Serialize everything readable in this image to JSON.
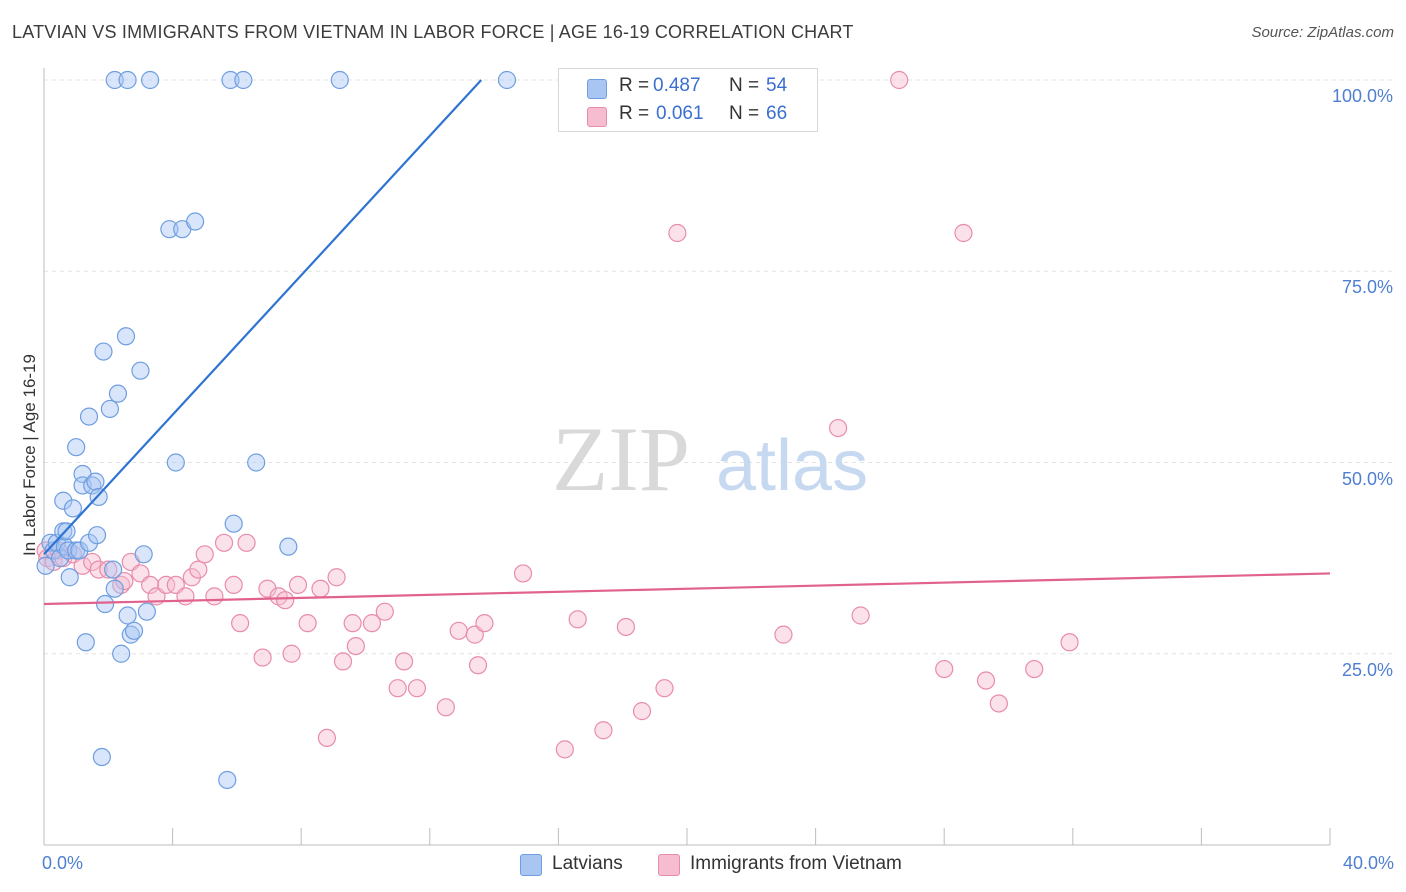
{
  "title": "LATVIAN VS IMMIGRANTS FROM VIETNAM IN LABOR FORCE | AGE 16-19 CORRELATION CHART",
  "source": "Source: ZipAtlas.com",
  "watermark": {
    "zip": "ZIP",
    "atlas": "atlas"
  },
  "colors": {
    "latvians_fill": "#a9c6f3",
    "latvians_stroke": "#6f9ee0",
    "latvians_line": "#2f74d0",
    "vietnam_fill": "#f6bcd0",
    "vietnam_stroke": "#e88cab",
    "vietnam_line": "#e0628d",
    "tick_text": "#4f7fd1",
    "grid": "#e3e3e3"
  },
  "stats": [
    {
      "r_label": "R =",
      "r_value": "0.487",
      "n_label": "N =",
      "n_value": "54"
    },
    {
      "r_label": "R =",
      "r_value": "0.061",
      "n_label": "N =",
      "n_value": "66"
    }
  ],
  "legend": [
    "Latvians",
    "Immigrants from Vietnam"
  ],
  "chart_data": {
    "type": "scatter",
    "title": "LATVIAN VS IMMIGRANTS FROM VIETNAM IN LABOR FORCE | AGE 16-19 CORRELATION CHART",
    "xlabel": "",
    "ylabel": "In Labor Force | Age 16-19",
    "xlim": [
      0,
      40
    ],
    "ylim": [
      0,
      100
    ],
    "x_tick_labels": [
      "0.0%",
      "40.0%"
    ],
    "y_tick_labels": [
      "25.0%",
      "50.0%",
      "75.0%",
      "100.0%"
    ],
    "y_ticks": [
      25,
      50,
      75,
      100
    ],
    "x_minor_ticks": [
      0,
      4,
      8,
      12,
      16,
      20,
      24,
      28,
      32,
      36,
      40
    ],
    "grid": true,
    "legend_position": "bottom",
    "series": [
      {
        "name": "Latvians",
        "trend": {
          "x": [
            0,
            13.6
          ],
          "y": [
            38,
            100
          ]
        },
        "points": [
          [
            0.05,
            36.5
          ],
          [
            0.2,
            39.5
          ],
          [
            0.3,
            38.5
          ],
          [
            0.4,
            39.5
          ],
          [
            0.5,
            37.5
          ],
          [
            0.6,
            45.0
          ],
          [
            0.6,
            41.0
          ],
          [
            0.65,
            39.0
          ],
          [
            0.7,
            41.0
          ],
          [
            0.75,
            38.5
          ],
          [
            0.8,
            35.0
          ],
          [
            0.9,
            44.0
          ],
          [
            1.0,
            38.5
          ],
          [
            1.0,
            52.0
          ],
          [
            1.1,
            38.5
          ],
          [
            1.2,
            48.5
          ],
          [
            1.2,
            47.0
          ],
          [
            1.3,
            26.5
          ],
          [
            1.4,
            39.5
          ],
          [
            1.4,
            56.0
          ],
          [
            1.5,
            47.0
          ],
          [
            1.6,
            47.5
          ],
          [
            1.65,
            40.5
          ],
          [
            1.7,
            45.5
          ],
          [
            1.8,
            11.5
          ],
          [
            1.85,
            64.5
          ],
          [
            1.9,
            31.5
          ],
          [
            2.05,
            57.0
          ],
          [
            2.15,
            36.0
          ],
          [
            2.2,
            33.5
          ],
          [
            2.2,
            100.0
          ],
          [
            2.3,
            59.0
          ],
          [
            2.4,
            25.0
          ],
          [
            2.55,
            66.5
          ],
          [
            2.6,
            100.0
          ],
          [
            2.6,
            30.0
          ],
          [
            2.7,
            27.5
          ],
          [
            2.8,
            28.0
          ],
          [
            3.0,
            62.0
          ],
          [
            3.1,
            38.0
          ],
          [
            3.2,
            30.5
          ],
          [
            3.3,
            100.0
          ],
          [
            3.9,
            80.5
          ],
          [
            4.1,
            50.0
          ],
          [
            4.3,
            80.5
          ],
          [
            4.7,
            81.5
          ],
          [
            5.7,
            8.5
          ],
          [
            5.8,
            100.0
          ],
          [
            5.9,
            42.0
          ],
          [
            6.2,
            100.0
          ],
          [
            6.6,
            50.0
          ],
          [
            7.6,
            39.0
          ],
          [
            9.2,
            100.0
          ],
          [
            14.4,
            100.0
          ]
        ]
      },
      {
        "name": "Immigrants from Vietnam",
        "trend": {
          "x": [
            0,
            40
          ],
          "y": [
            31.5,
            35.5
          ]
        },
        "points": [
          [
            0.05,
            38.5
          ],
          [
            0.1,
            37.5
          ],
          [
            0.3,
            37.0
          ],
          [
            0.45,
            38.5
          ],
          [
            0.6,
            37.5
          ],
          [
            0.9,
            38.0
          ],
          [
            1.2,
            36.5
          ],
          [
            1.5,
            37.0
          ],
          [
            1.7,
            36.0
          ],
          [
            2.0,
            36.0
          ],
          [
            2.4,
            34.0
          ],
          [
            2.5,
            34.5
          ],
          [
            2.7,
            37.0
          ],
          [
            3.0,
            35.5
          ],
          [
            3.3,
            34.0
          ],
          [
            3.5,
            32.5
          ],
          [
            3.8,
            34.0
          ],
          [
            4.1,
            34.0
          ],
          [
            4.4,
            32.5
          ],
          [
            4.6,
            35.0
          ],
          [
            4.8,
            36.0
          ],
          [
            5.0,
            38.0
          ],
          [
            5.3,
            32.5
          ],
          [
            5.6,
            39.5
          ],
          [
            5.9,
            34.0
          ],
          [
            6.1,
            29.0
          ],
          [
            6.3,
            39.5
          ],
          [
            6.8,
            24.5
          ],
          [
            6.95,
            33.5
          ],
          [
            7.3,
            32.5
          ],
          [
            7.5,
            32.0
          ],
          [
            7.7,
            25.0
          ],
          [
            7.9,
            34.0
          ],
          [
            8.2,
            29.0
          ],
          [
            8.6,
            33.5
          ],
          [
            8.8,
            14.0
          ],
          [
            9.1,
            35.0
          ],
          [
            9.3,
            24.0
          ],
          [
            9.6,
            29.0
          ],
          [
            9.7,
            26.0
          ],
          [
            10.2,
            29.0
          ],
          [
            10.6,
            30.5
          ],
          [
            11.0,
            20.5
          ],
          [
            11.2,
            24.0
          ],
          [
            11.6,
            20.5
          ],
          [
            12.5,
            18.0
          ],
          [
            12.9,
            28.0
          ],
          [
            13.4,
            27.5
          ],
          [
            13.5,
            23.5
          ],
          [
            13.7,
            29.0
          ],
          [
            14.9,
            35.5
          ],
          [
            16.2,
            12.5
          ],
          [
            16.6,
            29.5
          ],
          [
            17.4,
            15.0
          ],
          [
            18.1,
            28.5
          ],
          [
            18.6,
            17.5
          ],
          [
            19.3,
            20.5
          ],
          [
            19.7,
            80.0
          ],
          [
            23.0,
            27.5
          ],
          [
            24.7,
            54.5
          ],
          [
            25.4,
            30.0
          ],
          [
            26.6,
            100.0
          ],
          [
            28.0,
            23.0
          ],
          [
            28.6,
            80.0
          ],
          [
            29.3,
            21.5
          ],
          [
            29.7,
            18.5
          ],
          [
            30.8,
            23.0
          ],
          [
            31.9,
            26.5
          ]
        ]
      }
    ]
  }
}
